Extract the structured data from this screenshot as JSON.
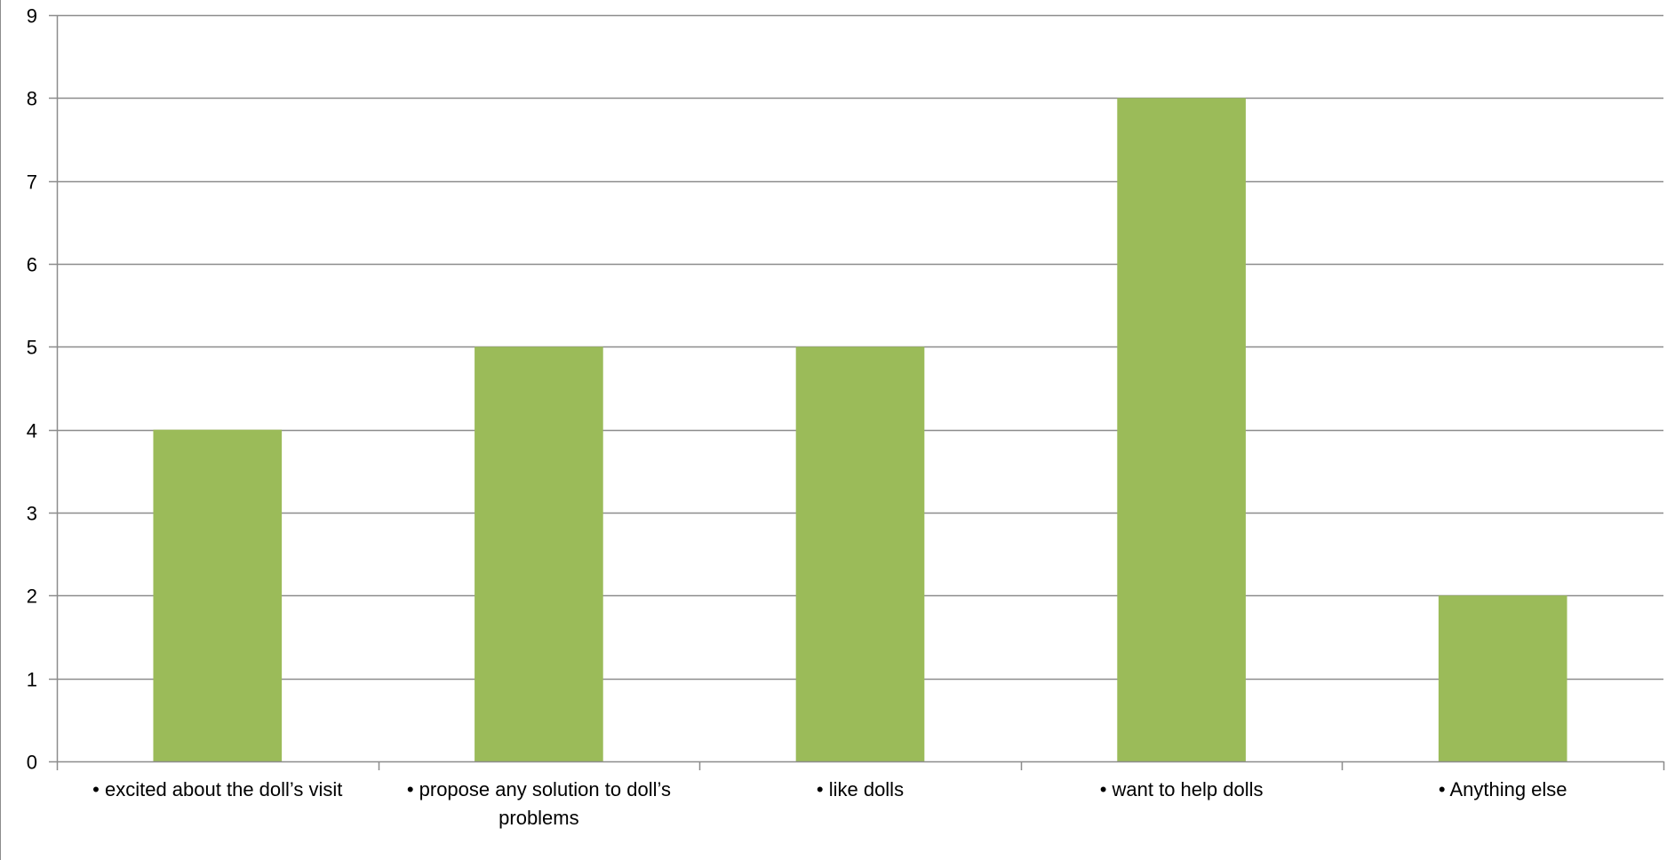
{
  "chart_data": {
    "type": "bar",
    "title": "",
    "xlabel": "",
    "ylabel": "",
    "categories": [
      "• excited about the doll’s visit",
      "• propose any solution to  doll’s problems",
      "• like dolls",
      "• want to help dolls",
      "• Anything else"
    ],
    "values": [
      4,
      5,
      5,
      8,
      2
    ],
    "ylim": [
      0,
      9
    ],
    "yticks": [
      "0",
      "1",
      "2",
      "3",
      "4",
      "5",
      "6",
      "7",
      "8",
      "9"
    ],
    "grid": true,
    "legend": "none",
    "colors": {
      "bar": "#9bbb59",
      "gridline": "#8c8c8c",
      "axis": "#8c8c8c"
    }
  }
}
